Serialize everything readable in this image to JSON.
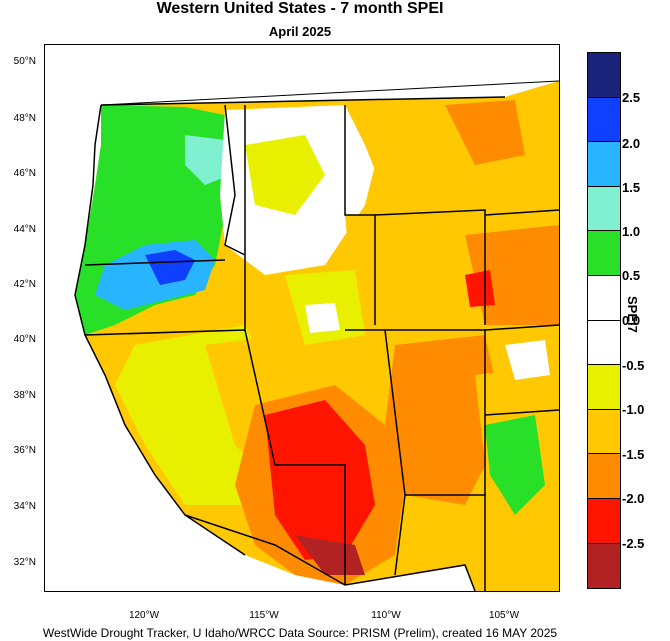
{
  "title": "Western United States - 7 month SPEI",
  "subtitle": "April 2025",
  "footer": "WestWide Drought Tracker, U Idaho/WRCC Data Source: PRISM (Prelim), created 16 MAY 2025",
  "lat_labels": [
    "50°N",
    "48°N",
    "46°N",
    "44°N",
    "42°N",
    "40°N",
    "38°N",
    "36°N",
    "34°N",
    "32°N"
  ],
  "lon_labels": [
    "120°W",
    "115°W",
    "110°W",
    "105°W"
  ],
  "colorbar": {
    "title": "SPEI7",
    "labels": [
      "2.5",
      "2.0",
      "1.5",
      "1.0",
      "0.5",
      "0.0",
      "-0.5",
      "-1.0",
      "-1.5",
      "-2.0",
      "-2.5"
    ],
    "colors": [
      "#1a237a",
      "#1040ff",
      "#28b4ff",
      "#80f0d0",
      "#28e028",
      "#ffffff",
      "#ffffff",
      "#e8f000",
      "#ffc800",
      "#ff8c00",
      "#ff1400",
      "#b22222"
    ]
  },
  "legend_colors": {
    "wet_moderate": "#28e028",
    "wet_strong": "#28b4ff",
    "near_normal": "#ffffff",
    "dry_abnormal": "#e8f000",
    "dry_moderate": "#ffc800",
    "dry_severe": "#ff8c00",
    "dry_extreme": "#ff1400",
    "dry_exceptional": "#b22222"
  }
}
